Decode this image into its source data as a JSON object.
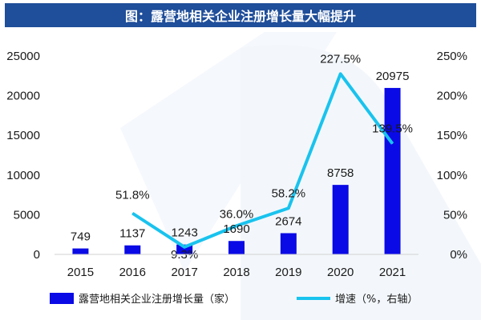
{
  "title": "图：露营地相关企业注册增长量大幅提升",
  "colors": {
    "title_bg": "#1f4e9a",
    "bar": "#0a0ae6",
    "line": "#19c3ee",
    "background_decoration": "#e6eef8"
  },
  "chart_data": {
    "type": "bar",
    "categories": [
      "2015",
      "2016",
      "2017",
      "2018",
      "2019",
      "2020",
      "2021"
    ],
    "series": [
      {
        "name": "露营地相关企业注册增长量（家）",
        "type": "bar",
        "axis": "left",
        "values": [
          749,
          1137,
          1243,
          1690,
          2674,
          8758,
          20975
        ],
        "labels": [
          "749",
          "1137",
          "1243",
          "1690",
          "2674",
          "8758",
          "20975"
        ]
      },
      {
        "name": "增速（%，右轴）",
        "type": "line",
        "axis": "right",
        "x": [
          "2016",
          "2017",
          "2018",
          "2019",
          "2020",
          "2021"
        ],
        "values": [
          51.8,
          9.3,
          36.0,
          58.2,
          227.5,
          139.5
        ],
        "labels": [
          "51.8%",
          "9.3%",
          "36.0%",
          "58.2%",
          "227.5%",
          "139.5%"
        ]
      }
    ],
    "y_left": {
      "ylim": [
        0,
        25000
      ],
      "ticks": [
        "0",
        "5000",
        "10000",
        "15000",
        "20000",
        "25000"
      ]
    },
    "y_right": {
      "ylim": [
        0,
        250
      ],
      "ticks": [
        "0%",
        "50%",
        "100%",
        "150%",
        "200%",
        "250%"
      ]
    },
    "grid": false,
    "legend_position": "bottom"
  }
}
